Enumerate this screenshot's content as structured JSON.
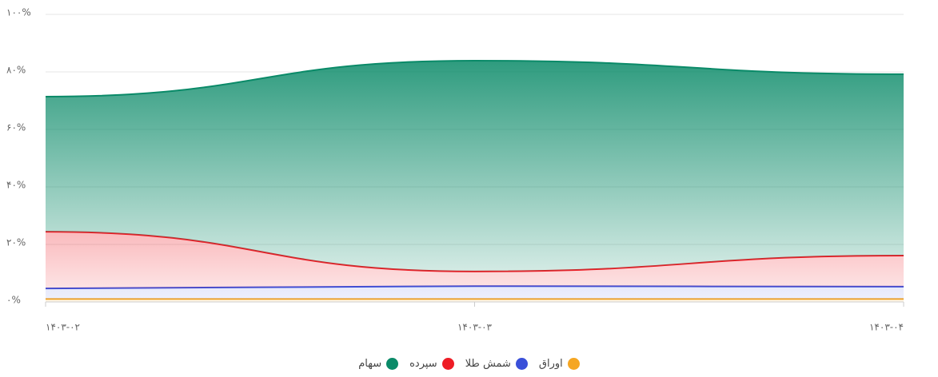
{
  "chart_data": {
    "type": "stacked_area",
    "categories": [
      "۱۴۰۳-۰۲",
      "۱۴۰۳-۰۳",
      "۱۴۰۳-۰۴"
    ],
    "series": [
      {
        "name": "اوراق",
        "color": "#f5a623",
        "values": [
          1,
          1,
          1
        ]
      },
      {
        "name": "شمش طلا",
        "color": "#3a50d9",
        "values": [
          3.7,
          4.5,
          4.3
        ]
      },
      {
        "name": "سپرده",
        "color": "#ee1c25",
        "values": [
          19.7,
          5.1,
          10.8
        ]
      },
      {
        "name": "سهام",
        "color": "#0a8a68",
        "values": [
          47,
          73.3,
          63.1
        ]
      }
    ],
    "ylim": [
      0,
      100
    ],
    "yticks": [
      {
        "value": 0,
        "label": "۰%"
      },
      {
        "value": 20,
        "label": "۲۰%"
      },
      {
        "value": 40,
        "label": "۴۰%"
      },
      {
        "value": 60,
        "label": "۶۰%"
      },
      {
        "value": 80,
        "label": "۸۰%"
      },
      {
        "value": 100,
        "label": "۱۰۰%"
      }
    ],
    "grid": true
  }
}
